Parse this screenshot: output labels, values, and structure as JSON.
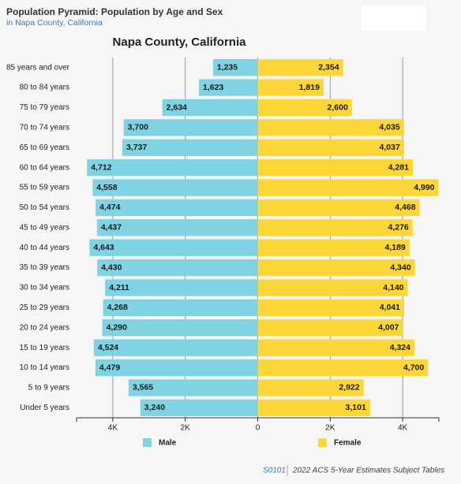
{
  "header": {
    "title": "Population Pyramid: Population by Age and Sex",
    "subtitle": "in Napa County, California"
  },
  "footer": {
    "table_id": "S0101",
    "source": "2022 ACS 5-Year Estimates Subject Tables"
  },
  "chart_data": {
    "type": "pyramid",
    "title": "Napa County, California",
    "categories": [
      "85 years and over",
      "80 to 84 years",
      "75 to 79 years",
      "70 to 74 years",
      "65 to 69 years",
      "60 to 64 years",
      "55 to 59 years",
      "50 to 54 years",
      "45 to 49 years",
      "40 to 44 years",
      "35 to 39 years",
      "30 to 34 years",
      "25 to 29 years",
      "20 to 24 years",
      "15 to 19 years",
      "10 to 14 years",
      "5 to 9 years",
      "Under 5 years"
    ],
    "series": [
      {
        "name": "Male",
        "color": "#80d3e2",
        "side": "left",
        "values": [
          1235,
          1623,
          2634,
          3700,
          3737,
          4712,
          4558,
          4474,
          4437,
          4643,
          4430,
          4211,
          4268,
          4290,
          4524,
          4479,
          3565,
          3240
        ],
        "value_labels": [
          "1,235",
          "1,623",
          "2,634",
          "3,700",
          "3,737",
          "4,712",
          "4,558",
          "4,474",
          "4,437",
          "4,643",
          "4,430",
          "4,211",
          "4,268",
          "4,290",
          "4,524",
          "4,479",
          "3,565",
          "3,240"
        ]
      },
      {
        "name": "Female",
        "color": "#fdd638",
        "side": "right",
        "values": [
          2354,
          1819,
          2600,
          4035,
          4037,
          4281,
          4990,
          4468,
          4276,
          4189,
          4340,
          4140,
          4041,
          4007,
          4324,
          4700,
          2922,
          3101
        ],
        "value_labels": [
          "2,354",
          "1,819",
          "2,600",
          "4,035",
          "4,037",
          "4,281",
          "4,990",
          "4,468",
          "4,276",
          "4,189",
          "4,340",
          "4,140",
          "4,041",
          "4,007",
          "4,324",
          "4,700",
          "2,922",
          "3,101"
        ]
      }
    ],
    "xlim": [
      -5000,
      5000
    ],
    "xticks": [
      {
        "value": -4000,
        "label": "4K"
      },
      {
        "value": -2000,
        "label": "2K"
      },
      0,
      {
        "value": 2000,
        "label": "2K"
      },
      {
        "value": 4000,
        "label": "4K"
      }
    ],
    "grid": true
  }
}
